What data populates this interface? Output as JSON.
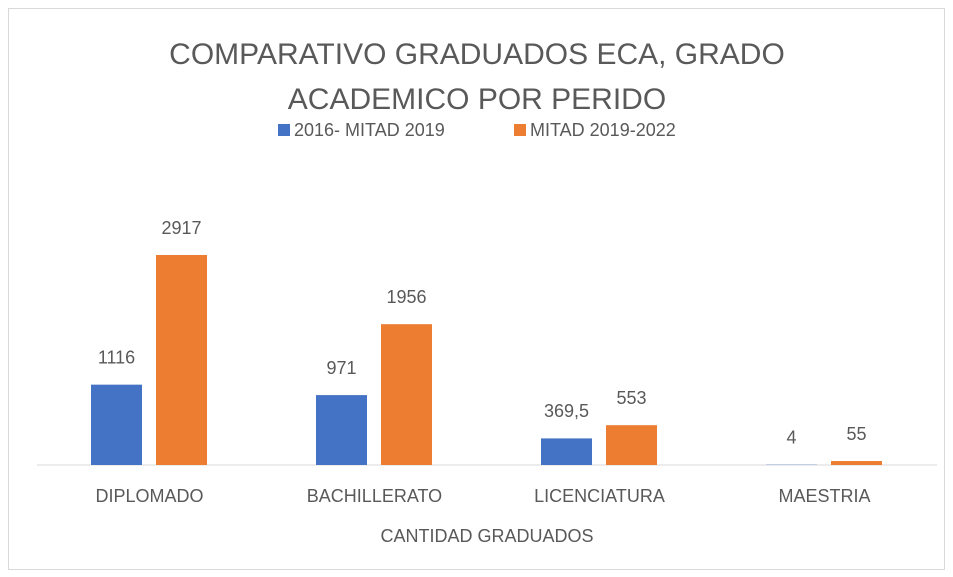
{
  "chart_data": {
    "type": "bar",
    "title": [
      "COMPARATIVO GRADUADOS ECA, GRADO",
      "ACADEMICO POR PERIDO"
    ],
    "x_label": "CANTIDAD GRADUADOS",
    "categories": [
      "DIPLOMADO",
      "BACHILLERATO",
      "LICENCIATURA",
      "MAESTRIA"
    ],
    "series": [
      {
        "name": "2016- MITAD 2019",
        "color": "#4472c4",
        "values": [
          1116,
          971,
          369.5,
          4
        ],
        "value_labels": [
          "1116",
          "971",
          "369,5",
          "4"
        ]
      },
      {
        "name": "MITAD 2019-2022",
        "color": "#ed7d31",
        "values": [
          2917,
          1956,
          553,
          55
        ]
      }
    ],
    "legend": "top",
    "grid": false
  }
}
